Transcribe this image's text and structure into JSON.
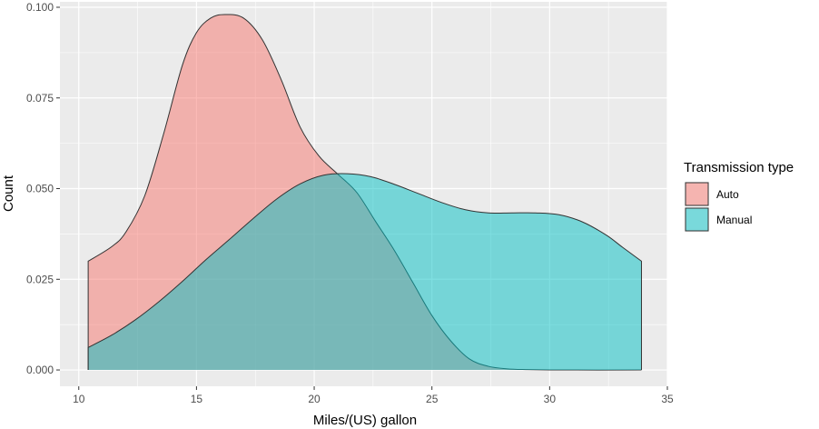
{
  "chart_data": {
    "type": "area",
    "subtype": "density",
    "title": "",
    "xlabel": "Miles/(US) gallon",
    "ylabel": "Count",
    "xlim": [
      9.2,
      35
    ],
    "ylim": [
      -0.0045,
      0.1015
    ],
    "x_ticks": [
      10,
      15,
      20,
      25,
      30,
      35
    ],
    "x_tick_labels": [
      "10",
      "15",
      "20",
      "25",
      "30",
      "35"
    ],
    "y_ticks": [
      0,
      0.025,
      0.05,
      0.075,
      0.1
    ],
    "y_tick_labels": [
      "0.000",
      "0.025",
      "0.050",
      "0.075",
      "0.100"
    ],
    "grid": true,
    "legend": {
      "title": "Transmission type",
      "position": "right",
      "entries": [
        {
          "label": "Auto",
          "color": "#F8766D"
        },
        {
          "label": "Manual",
          "color": "#00BFC4"
        }
      ]
    },
    "colors": {
      "panel": "#EBEBEB",
      "grid": "#FFFFFF",
      "outline": "#333333",
      "fill_alpha": 0.5
    },
    "series": [
      {
        "name": "Auto",
        "color": "#F8766D",
        "points": [
          [
            10.4,
            0.03
          ],
          [
            11.4,
            0.034
          ],
          [
            12.0,
            0.038
          ],
          [
            12.8,
            0.048
          ],
          [
            13.6,
            0.065
          ],
          [
            14.4,
            0.084
          ],
          [
            15.0,
            0.093
          ],
          [
            15.6,
            0.097
          ],
          [
            16.2,
            0.098
          ],
          [
            17.0,
            0.097
          ],
          [
            17.8,
            0.091
          ],
          [
            18.6,
            0.08
          ],
          [
            19.4,
            0.067
          ],
          [
            20.2,
            0.059
          ],
          [
            21.0,
            0.054
          ],
          [
            21.8,
            0.049
          ],
          [
            22.6,
            0.041
          ],
          [
            23.4,
            0.033
          ],
          [
            24.2,
            0.024
          ],
          [
            25.0,
            0.015
          ],
          [
            25.8,
            0.008
          ],
          [
            26.6,
            0.003
          ],
          [
            27.4,
            0.001
          ],
          [
            28.2,
            0.0003
          ],
          [
            29.0,
            0.0001
          ],
          [
            30.4,
            0.0
          ],
          [
            33.9,
            0.0
          ]
        ]
      },
      {
        "name": "Manual",
        "color": "#00BFC4",
        "points": [
          [
            10.4,
            0.0062
          ],
          [
            11.4,
            0.0096
          ],
          [
            12.4,
            0.0138
          ],
          [
            13.4,
            0.0188
          ],
          [
            14.4,
            0.0244
          ],
          [
            15.4,
            0.0304
          ],
          [
            16.4,
            0.036
          ],
          [
            17.4,
            0.0417
          ],
          [
            18.4,
            0.0471
          ],
          [
            19.4,
            0.0513
          ],
          [
            20.4,
            0.0537
          ],
          [
            21.4,
            0.0541
          ],
          [
            22.4,
            0.0533
          ],
          [
            23.4,
            0.0512
          ],
          [
            24.4,
            0.0487
          ],
          [
            25.4,
            0.0462
          ],
          [
            26.4,
            0.0442
          ],
          [
            27.4,
            0.0433
          ],
          [
            28.4,
            0.0433
          ],
          [
            29.4,
            0.0433
          ],
          [
            30.4,
            0.0428
          ],
          [
            31.4,
            0.0408
          ],
          [
            32.4,
            0.0372
          ],
          [
            33.1,
            0.0338
          ],
          [
            33.9,
            0.03
          ]
        ]
      }
    ]
  }
}
